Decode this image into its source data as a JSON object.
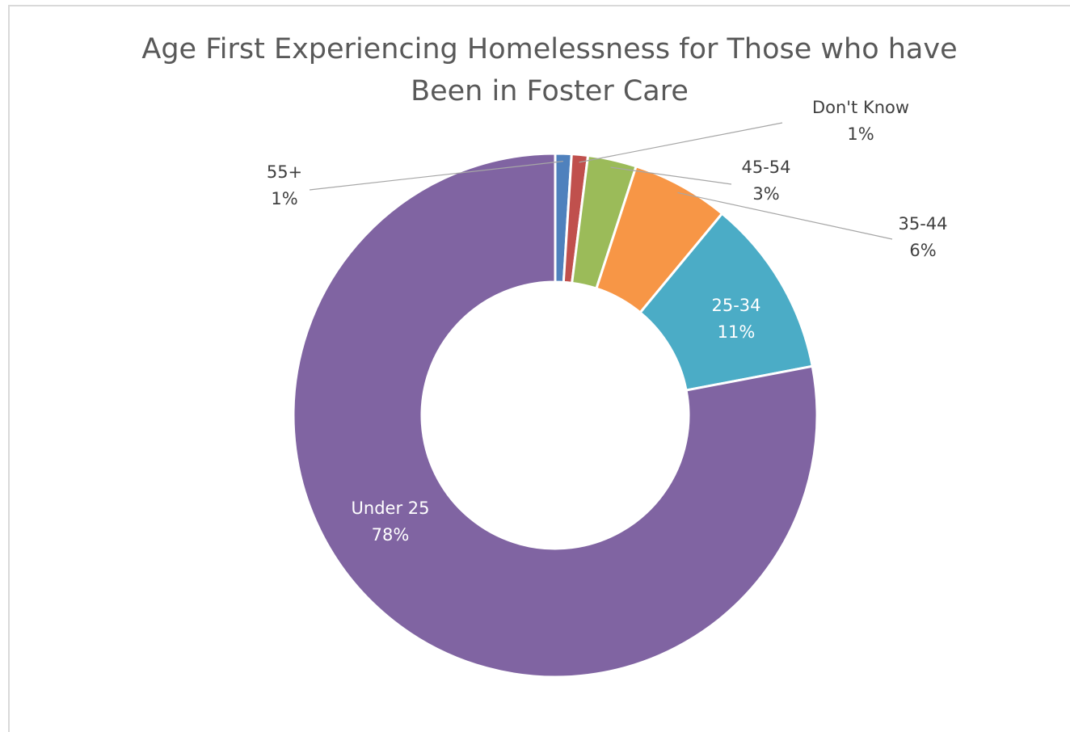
{
  "chart_data": {
    "type": "pie",
    "variant": "donut",
    "title": "Age First Experiencing Homelessness for Those who have Been in Foster Care",
    "title_lines": [
      "Age First Experiencing Homelessness for Those who have",
      "Been in Foster Care"
    ],
    "legend": "none",
    "slices": [
      {
        "label": "55+",
        "value": 1,
        "display": "1%",
        "color": "#4f81bd"
      },
      {
        "label": "Don't Know",
        "value": 1,
        "display": "1%",
        "color": "#c0504d"
      },
      {
        "label": "45-54",
        "value": 3,
        "display": "3%",
        "color": "#9bbb59"
      },
      {
        "label": "35-44",
        "value": 6,
        "display": "6%",
        "color": "#f79646"
      },
      {
        "label": "25-34",
        "value": 11,
        "display": "11%",
        "color": "#4bacc6"
      },
      {
        "label": "Under 25",
        "value": 78,
        "display": "78%",
        "color": "#8064a2"
      }
    ]
  }
}
